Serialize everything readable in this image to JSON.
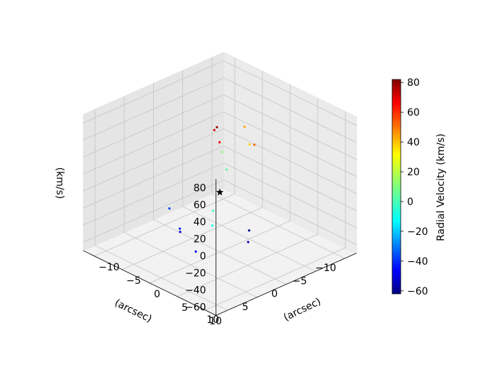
{
  "chart_data": {
    "type": "scatter",
    "projection": "3d",
    "axes": {
      "x": {
        "label": "(arcsec)",
        "ticks": [
          -10,
          -5,
          0,
          5,
          10
        ],
        "lim": [
          -12,
          12
        ]
      },
      "y": {
        "label": "(arcsec)",
        "ticks": [
          -10,
          -5,
          0,
          5,
          10
        ],
        "lim": [
          -12,
          12
        ]
      },
      "z": {
        "label": "(km/s)",
        "ticks": [
          -60,
          -40,
          -20,
          0,
          20,
          40,
          60,
          80
        ],
        "lim": [
          -70,
          90
        ]
      }
    },
    "colorbar": {
      "label": "Radial Velocity (km/s)",
      "ticks": [
        -60,
        -40,
        -20,
        0,
        20,
        40,
        60,
        80
      ],
      "range": [
        -62,
        82
      ],
      "colormap": "jet"
    },
    "center_marker": {
      "symbol": "star",
      "x": 0,
      "y": 0,
      "z": 0,
      "color": "#000000"
    },
    "grid": true,
    "series": [
      {
        "x": [
          -8,
          -6,
          -4,
          0.5,
          1,
          0
        ],
        "y": [
          -4,
          -1,
          2,
          0,
          1,
          -1
        ],
        "z": [
          40,
          35,
          50,
          78,
          65,
          70
        ]
      },
      {
        "x": [
          6,
          3,
          -2,
          -5,
          2,
          4
        ],
        "y": [
          2,
          -4,
          3,
          0,
          -7,
          -3
        ],
        "z": [
          -45,
          -50,
          -55,
          -60,
          -35,
          -40
        ]
      },
      {
        "x": [
          -6,
          -4,
          4,
          6
        ],
        "y": [
          -6,
          -3,
          3,
          5
        ],
        "z": [
          10,
          5,
          0,
          -5
        ]
      }
    ]
  }
}
